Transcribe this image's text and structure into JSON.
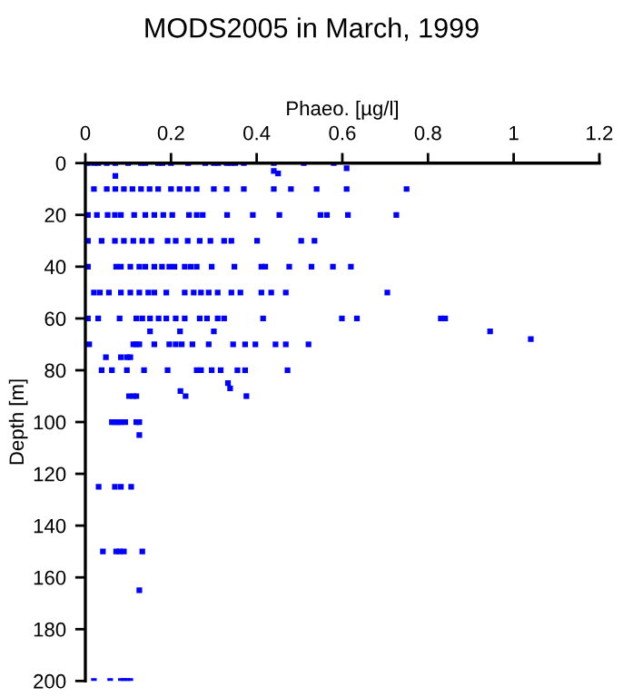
{
  "chart_data": {
    "type": "scatter",
    "title": "MODS2005 in March, 1999",
    "xlabel": "Phaeo. [µg/l]",
    "ylabel": "Depth [m]",
    "xlim": [
      0,
      1.2
    ],
    "xticks": [
      0,
      0.2,
      0.4,
      0.6,
      0.8,
      1,
      1.2
    ],
    "ylim": [
      200,
      0
    ],
    "yticks": [
      0,
      20,
      40,
      60,
      80,
      100,
      120,
      140,
      160,
      180,
      200
    ],
    "marker": "square",
    "grid": false,
    "legend": false,
    "series": [
      {
        "color": "#0000ff",
        "x": [
          0.006,
          0.02,
          0.03,
          0.05,
          0.07,
          0.1,
          0.13,
          0.14,
          0.17,
          0.18,
          0.2,
          0.24,
          0.28,
          0.3,
          0.31,
          0.33,
          0.34,
          0.35,
          0.37,
          0.44,
          0.51,
          0.58,
          0.61,
          0.44,
          0.45,
          0.07,
          0.02,
          0.05,
          0.07,
          0.09,
          0.11,
          0.13,
          0.15,
          0.17,
          0.2,
          0.22,
          0.24,
          0.26,
          0.3,
          0.33,
          0.37,
          0.44,
          0.48,
          0.54,
          0.61,
          0.75,
          0.006,
          0.027,
          0.052,
          0.069,
          0.083,
          0.114,
          0.14,
          0.161,
          0.182,
          0.203,
          0.242,
          0.26,
          0.274,
          0.331,
          0.391,
          0.453,
          0.549,
          0.564,
          0.613,
          0.726,
          0.006,
          0.038,
          0.069,
          0.09,
          0.112,
          0.133,
          0.154,
          0.192,
          0.211,
          0.239,
          0.267,
          0.292,
          0.324,
          0.341,
          0.401,
          0.504,
          0.535,
          0.006,
          0.072,
          0.083,
          0.105,
          0.126,
          0.14,
          0.161,
          0.179,
          0.196,
          0.208,
          0.232,
          0.246,
          0.26,
          0.295,
          0.348,
          0.411,
          0.42,
          0.476,
          0.528,
          0.578,
          0.62,
          0.02,
          0.034,
          0.055,
          0.083,
          0.105,
          0.126,
          0.147,
          0.161,
          0.189,
          0.232,
          0.253,
          0.27,
          0.288,
          0.309,
          0.341,
          0.362,
          0.411,
          0.434,
          0.468,
          0.705,
          0.006,
          0.03,
          0.08,
          0.119,
          0.133,
          0.151,
          0.171,
          0.189,
          0.211,
          0.232,
          0.267,
          0.284,
          0.309,
          0.324,
          0.415,
          0.599,
          0.634,
          0.83,
          0.84,
          0.945,
          1.04,
          0.151,
          0.221,
          0.3,
          0.009,
          0.112,
          0.119,
          0.126,
          0.161,
          0.196,
          0.211,
          0.225,
          0.25,
          0.288,
          0.345,
          0.373,
          0.397,
          0.444,
          0.468,
          0.521,
          0.048,
          0.083,
          0.097,
          0.105,
          0.038,
          0.062,
          0.097,
          0.137,
          0.192,
          0.26,
          0.27,
          0.295,
          0.316,
          0.355,
          0.373,
          0.472,
          0.333,
          0.338,
          0.222,
          0.102,
          0.112,
          0.119,
          0.234,
          0.376,
          0.062,
          0.069,
          0.076,
          0.083,
          0.093,
          0.119,
          0.126,
          0.126,
          0.031,
          0.069,
          0.083,
          0.107,
          0.041,
          0.072,
          0.08,
          0.09,
          0.133,
          0.126,
          0.02,
          0.058,
          0.083,
          0.09,
          0.097,
          0.105
        ],
        "values": [
          0,
          0,
          0,
          0,
          0,
          0,
          0,
          0,
          0,
          0,
          0,
          0,
          0,
          0,
          0,
          0,
          0,
          0,
          0,
          0,
          0,
          0,
          2,
          3,
          4,
          5,
          10,
          10,
          10,
          10,
          10,
          10,
          10,
          10,
          10,
          10,
          10,
          10,
          10,
          10,
          10,
          10,
          10,
          10,
          10,
          10,
          20,
          20,
          20,
          20,
          20,
          20,
          20,
          20,
          20,
          20,
          20,
          20,
          20,
          20,
          20,
          20,
          20,
          20,
          20,
          20,
          30,
          30,
          30,
          30,
          30,
          30,
          30,
          30,
          30,
          30,
          30,
          30,
          30,
          30,
          30,
          30,
          30,
          40,
          40,
          40,
          40,
          40,
          40,
          40,
          40,
          40,
          40,
          40,
          40,
          40,
          40,
          40,
          40,
          40,
          40,
          40,
          40,
          40,
          50,
          50,
          50,
          50,
          50,
          50,
          50,
          50,
          50,
          50,
          50,
          50,
          50,
          50,
          50,
          50,
          50,
          50,
          50,
          50,
          60,
          60,
          60,
          60,
          60,
          60,
          60,
          60,
          60,
          60,
          60,
          60,
          60,
          60,
          60,
          60,
          60,
          60,
          60,
          65,
          68,
          65,
          65,
          65,
          70,
          70,
          70,
          70,
          70,
          70,
          70,
          70,
          70,
          70,
          70,
          70,
          70,
          70,
          70,
          70,
          75,
          75,
          75,
          75,
          80,
          80,
          80,
          80,
          80,
          80,
          80,
          80,
          80,
          80,
          80,
          80,
          85,
          87,
          88,
          90,
          90,
          90,
          90,
          90,
          100,
          100,
          100,
          100,
          100,
          100,
          100,
          105,
          125,
          125,
          125,
          125,
          150,
          150,
          150,
          150,
          150,
          165,
          200,
          200,
          200,
          200,
          200,
          200
        ]
      }
    ]
  }
}
